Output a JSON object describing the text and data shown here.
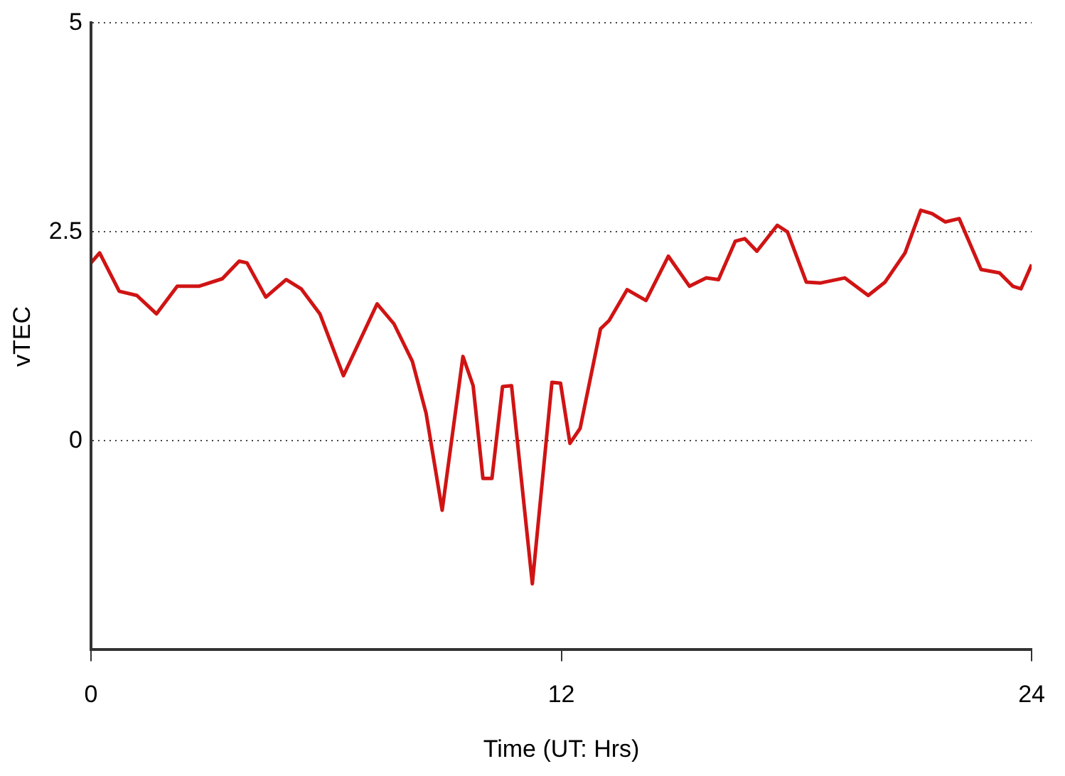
{
  "chart_data": {
    "type": "line",
    "xlabel": "Time (UT: Hrs)",
    "ylabel": "vTEC",
    "x": [
      0,
      0.22,
      0.72,
      1.17,
      1.67,
      2.2,
      2.75,
      3.35,
      3.78,
      3.98,
      4.46,
      4.98,
      5.36,
      5.84,
      6.44,
      7.3,
      7.73,
      8.2,
      8.55,
      8.96,
      9.49,
      9.75,
      10.0,
      10.23,
      10.5,
      10.73,
      11.26,
      11.76,
      11.98,
      12.22,
      12.48,
      13.0,
      13.22,
      13.68,
      14.16,
      14.73,
      15.27,
      15.7,
      16.01,
      16.44,
      16.68,
      16.99,
      17.51,
      17.77,
      18.25,
      18.62,
      19.23,
      19.83,
      20.26,
      20.77,
      21.17,
      21.46,
      21.8,
      22.15,
      22.71,
      23.18,
      23.52,
      23.73,
      24
    ],
    "series": [
      {
        "color": "#d01414",
        "values": [
          2.13,
          2.25,
          1.79,
          1.74,
          1.52,
          1.85,
          1.85,
          1.94,
          2.15,
          2.13,
          1.72,
          1.93,
          1.82,
          1.52,
          0.78,
          1.64,
          1.4,
          0.95,
          0.33,
          -0.83,
          1.01,
          0.66,
          -0.45,
          -0.45,
          0.65,
          0.66,
          -1.71,
          0.7,
          0.69,
          -0.03,
          0.15,
          1.34,
          1.44,
          1.81,
          1.68,
          2.21,
          1.85,
          1.95,
          1.93,
          2.39,
          2.42,
          2.27,
          2.58,
          2.5,
          1.9,
          1.89,
          1.95,
          1.74,
          1.9,
          2.25,
          2.76,
          2.72,
          2.62,
          2.66,
          2.05,
          2.01,
          1.85,
          1.82,
          2.11
        ]
      }
    ],
    "xlim": [
      0,
      24
    ],
    "xticks": [
      0,
      12,
      24
    ],
    "ylim": [
      -2.5,
      5
    ],
    "yticks": [
      0,
      2.5,
      5
    ],
    "grid": "y",
    "marker": "none",
    "line_style": "solid",
    "legend": false
  }
}
